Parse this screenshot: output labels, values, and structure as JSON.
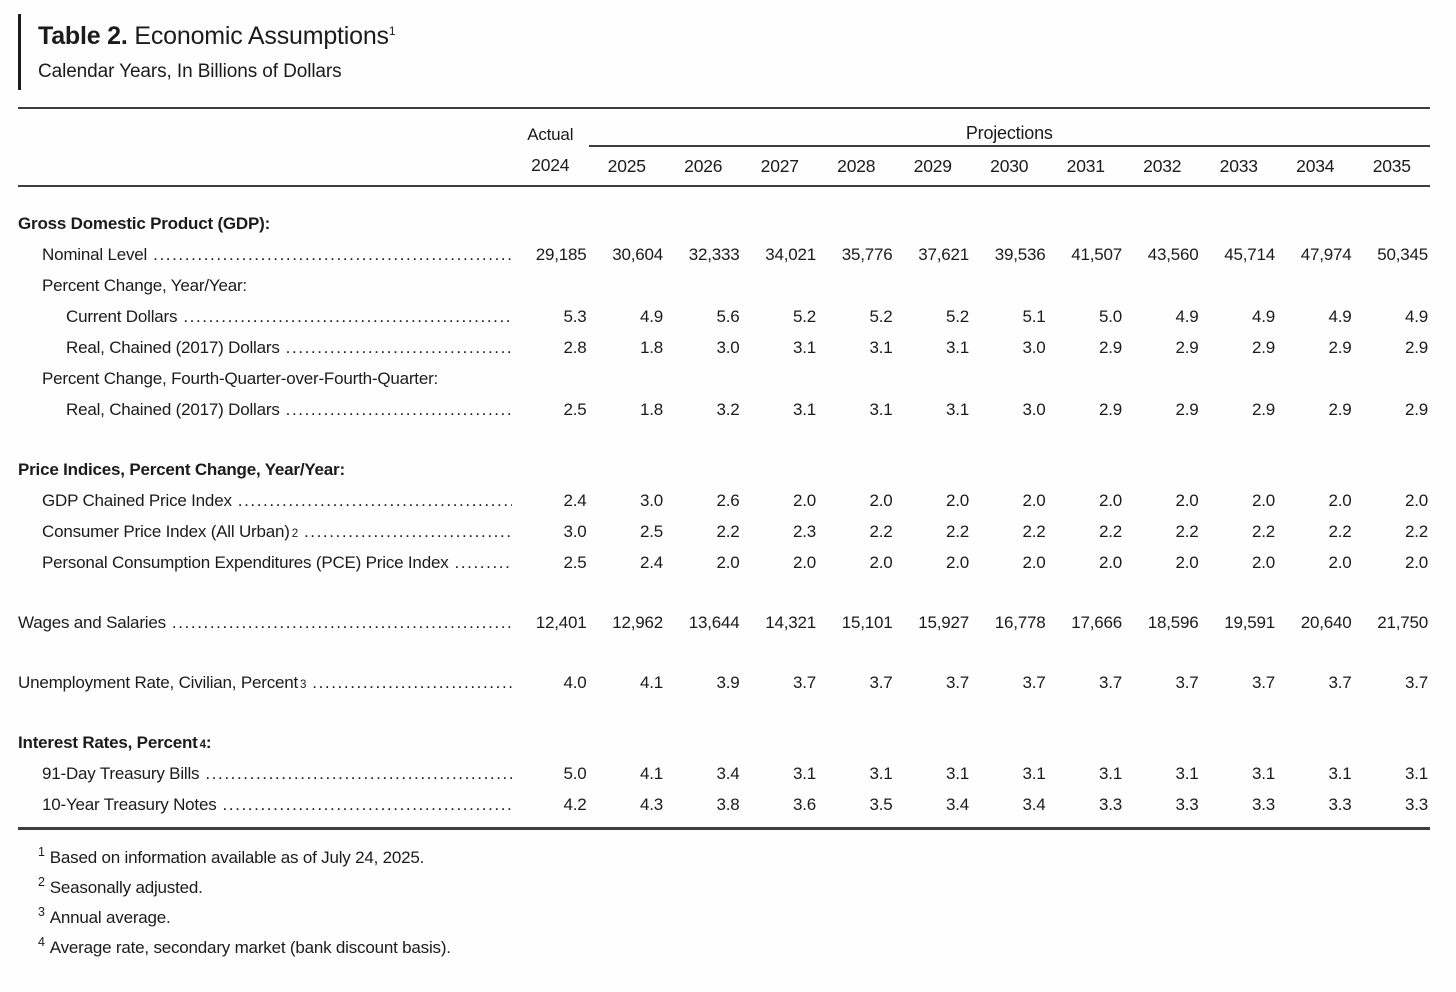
{
  "page": {
    "title_bold": "Table 2.",
    "title_rest": " Economic Assumptions",
    "title_sup": "1",
    "subtitle": "Calendar Years, In Billions of Dollars"
  },
  "table": {
    "actual_label": "Actual",
    "projections_label": "Projections",
    "years": [
      "2024",
      "2025",
      "2026",
      "2027",
      "2028",
      "2029",
      "2030",
      "2031",
      "2032",
      "2033",
      "2034",
      "2035"
    ],
    "rows": [
      {
        "type": "section",
        "indent": 0,
        "label": "Gross Domestic Product (GDP):"
      },
      {
        "type": "data",
        "indent": 1,
        "label": "Nominal Level",
        "values": [
          "29,185",
          "30,604",
          "32,333",
          "34,021",
          "35,776",
          "37,621",
          "39,536",
          "41,507",
          "43,560",
          "45,714",
          "47,974",
          "50,345"
        ]
      },
      {
        "type": "subheader",
        "indent": 1,
        "label": "Percent Change, Year/Year:"
      },
      {
        "type": "data",
        "indent": 2,
        "label": "Current Dollars",
        "values": [
          "5.3",
          "4.9",
          "5.6",
          "5.2",
          "5.2",
          "5.2",
          "5.1",
          "5.0",
          "4.9",
          "4.9",
          "4.9",
          "4.9"
        ]
      },
      {
        "type": "data",
        "indent": 2,
        "label": "Real, Chained (2017) Dollars",
        "values": [
          "2.8",
          "1.8",
          "3.0",
          "3.1",
          "3.1",
          "3.1",
          "3.0",
          "2.9",
          "2.9",
          "2.9",
          "2.9",
          "2.9"
        ]
      },
      {
        "type": "subheader",
        "indent": 1,
        "label": "Percent Change, Fourth-Quarter-over-Fourth-Quarter:"
      },
      {
        "type": "data",
        "indent": 2,
        "label": "Real, Chained (2017) Dollars",
        "values": [
          "2.5",
          "1.8",
          "3.2",
          "3.1",
          "3.1",
          "3.1",
          "3.0",
          "2.9",
          "2.9",
          "2.9",
          "2.9",
          "2.9"
        ]
      },
      {
        "type": "section",
        "indent": 0,
        "label": "Price Indices, Percent Change, Year/Year:"
      },
      {
        "type": "data",
        "indent": 1,
        "label": "GDP Chained Price Index",
        "values": [
          "2.4",
          "3.0",
          "2.6",
          "2.0",
          "2.0",
          "2.0",
          "2.0",
          "2.0",
          "2.0",
          "2.0",
          "2.0",
          "2.0"
        ]
      },
      {
        "type": "data",
        "indent": 1,
        "label": "Consumer Price Index (All Urban)",
        "sup": "2",
        "values": [
          "3.0",
          "2.5",
          "2.2",
          "2.3",
          "2.2",
          "2.2",
          "2.2",
          "2.2",
          "2.2",
          "2.2",
          "2.2",
          "2.2"
        ]
      },
      {
        "type": "data",
        "indent": 1,
        "label": "Personal Consumption Expenditures (PCE) Price Index",
        "values": [
          "2.5",
          "2.4",
          "2.0",
          "2.0",
          "2.0",
          "2.0",
          "2.0",
          "2.0",
          "2.0",
          "2.0",
          "2.0",
          "2.0"
        ]
      },
      {
        "type": "data",
        "indent": 0,
        "label": "Wages and Salaries",
        "values": [
          "12,401",
          "12,962",
          "13,644",
          "14,321",
          "15,101",
          "15,927",
          "16,778",
          "17,666",
          "18,596",
          "19,591",
          "20,640",
          "21,750"
        ]
      },
      {
        "type": "data",
        "indent": 0,
        "label": "Unemployment Rate, Civilian, Percent",
        "sup": "3",
        "values": [
          "4.0",
          "4.1",
          "3.9",
          "3.7",
          "3.7",
          "3.7",
          "3.7",
          "3.7",
          "3.7",
          "3.7",
          "3.7",
          "3.7"
        ]
      },
      {
        "type": "section",
        "indent": 0,
        "label": "Interest Rates, Percent",
        "sup": "4",
        "after": ":"
      },
      {
        "type": "data",
        "indent": 1,
        "label": "91-Day Treasury Bills",
        "values": [
          "5.0",
          "4.1",
          "3.4",
          "3.1",
          "3.1",
          "3.1",
          "3.1",
          "3.1",
          "3.1",
          "3.1",
          "3.1",
          "3.1"
        ]
      },
      {
        "type": "data",
        "indent": 1,
        "label": "10-Year Treasury Notes",
        "values": [
          "4.2",
          "4.3",
          "3.8",
          "3.6",
          "3.5",
          "3.4",
          "3.4",
          "3.3",
          "3.3",
          "3.3",
          "3.3",
          "3.3"
        ]
      }
    ]
  },
  "footnotes": [
    {
      "sup": "1",
      "text": "Based on information available as of July 24, 2025."
    },
    {
      "sup": "2",
      "text": "Seasonally adjusted."
    },
    {
      "sup": "3",
      "text": "Annual average."
    },
    {
      "sup": "4",
      "text": "Average rate, secondary market (bank discount basis)."
    }
  ],
  "colors": {
    "text": "#1b1b1b",
    "rule": "#3f3f3f",
    "background": "#fefefe"
  }
}
